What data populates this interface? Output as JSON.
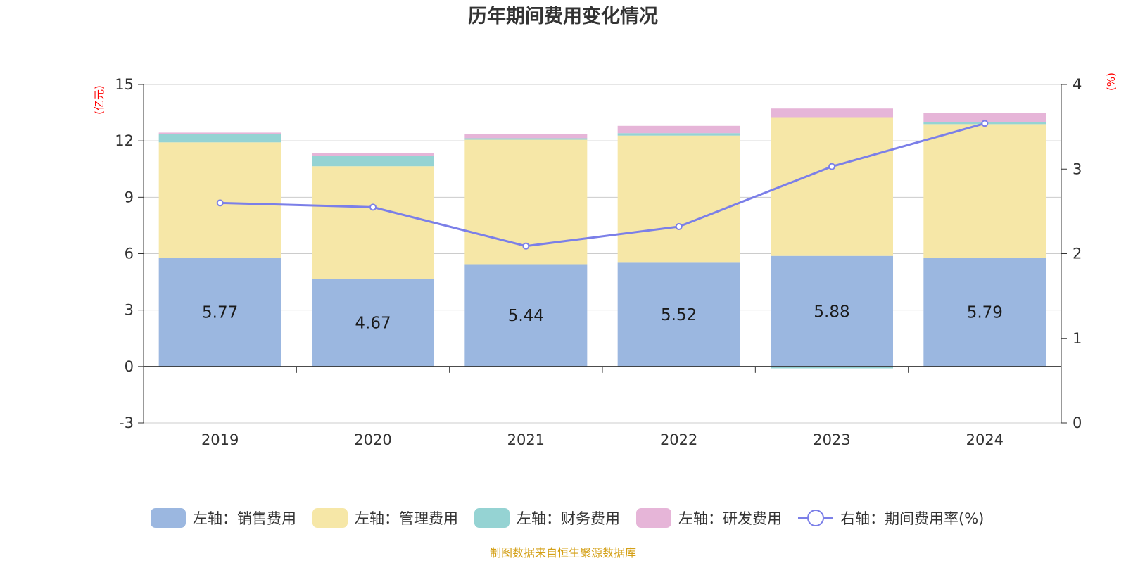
{
  "chart_data": {
    "type": "bar",
    "title": "历年期间费用变化情况",
    "categories": [
      "2019",
      "2020",
      "2021",
      "2022",
      "2023",
      "2024"
    ],
    "left_axis": {
      "unit": "(亿元)",
      "min": -3,
      "max": 15,
      "ticks": [
        -3,
        0,
        3,
        6,
        9,
        12,
        15
      ]
    },
    "right_axis": {
      "unit": "(%)",
      "min": 0,
      "max": 4,
      "ticks": [
        0,
        1,
        2,
        3,
        4
      ]
    },
    "series": [
      {
        "name": "左轴：销售费用",
        "axis": "left",
        "kind": "stacked-bar",
        "color": "#9bb7e0",
        "values": [
          5.77,
          4.67,
          5.44,
          5.52,
          5.88,
          5.79
        ]
      },
      {
        "name": "左轴：管理费用",
        "axis": "left",
        "kind": "stacked-bar",
        "color": "#f6e7a7",
        "values": [
          6.15,
          5.98,
          6.62,
          6.76,
          7.38,
          7.1
        ]
      },
      {
        "name": "左轴：财务费用",
        "axis": "left",
        "kind": "stacked-bar",
        "color": "#95d3d3",
        "values": [
          0.45,
          0.55,
          0.08,
          0.13,
          -0.1,
          0.1
        ]
      },
      {
        "name": "左轴：研发费用",
        "axis": "left",
        "kind": "stacked-bar",
        "color": "#e6b5d8",
        "values": [
          0.07,
          0.17,
          0.24,
          0.39,
          0.46,
          0.48
        ]
      },
      {
        "name": "右轴：期间费用率(%)",
        "axis": "right",
        "kind": "line",
        "color": "#7b7fe8",
        "values": [
          2.6,
          2.55,
          2.09,
          2.32,
          3.03,
          3.54
        ]
      }
    ],
    "data_labels": [
      "5.77",
      "4.67",
      "5.44",
      "5.52",
      "5.88",
      "5.79"
    ],
    "legend_position": "bottom-center",
    "grid": true
  },
  "source_note": "制图数据来自恒生聚源数据库"
}
